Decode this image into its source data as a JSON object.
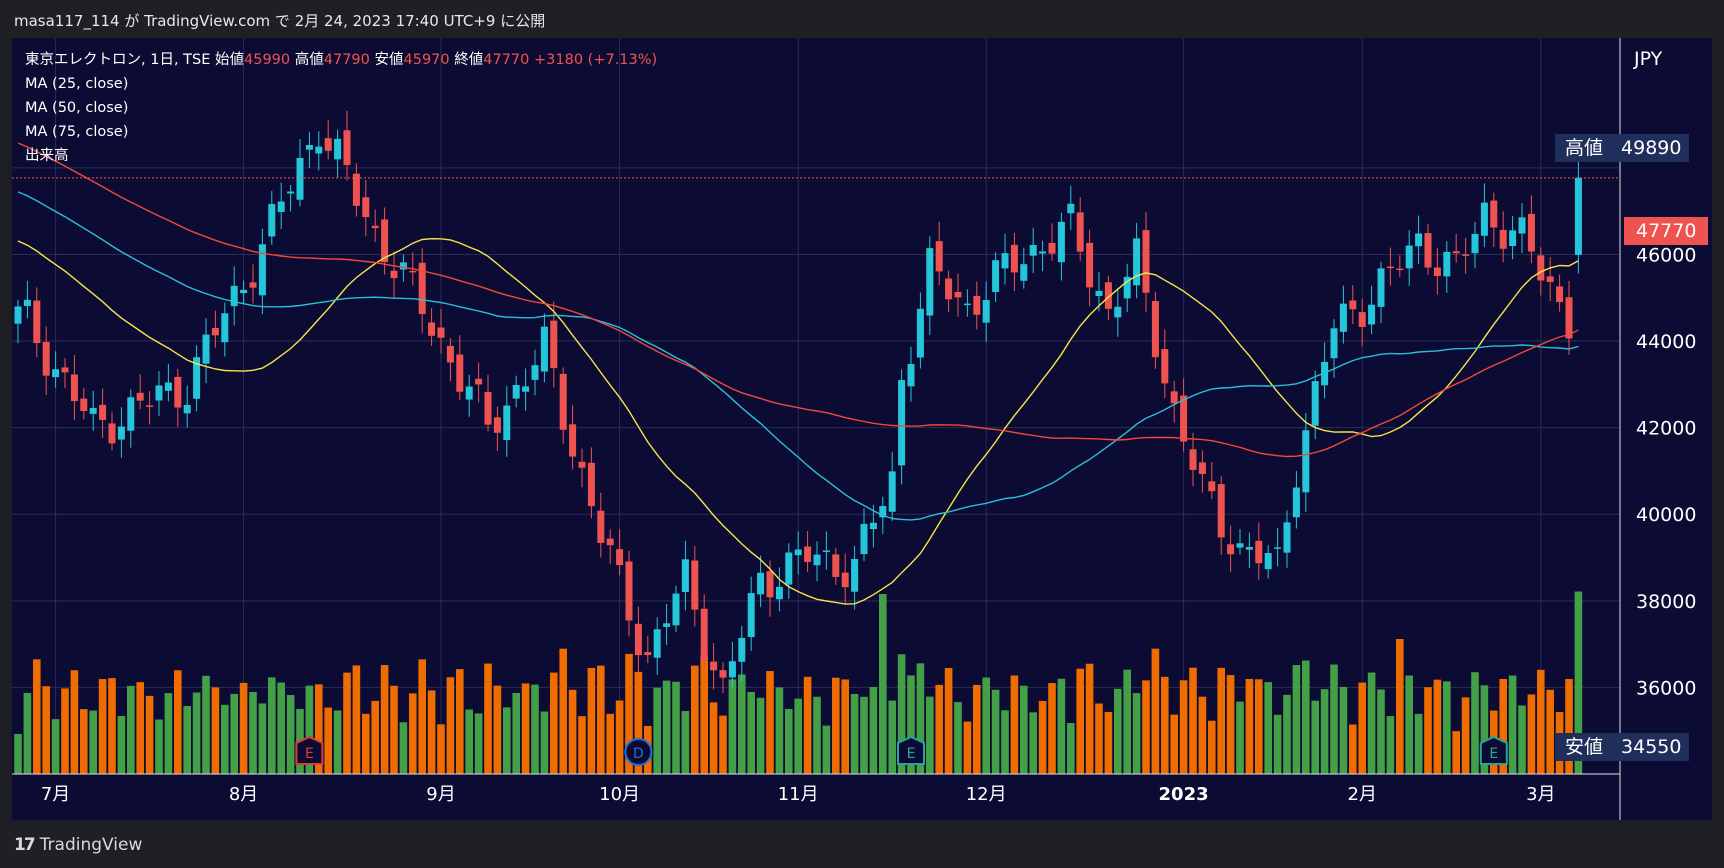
{
  "header": {
    "publish_info": "masa117_114 が TradingView.com で 2月 24, 2023 17:40 UTC+9 に公開"
  },
  "footer": {
    "brand": "TradingView",
    "logo_text": "17"
  },
  "legend": {
    "symbol": "東京エレクトロン, 1日, TSE",
    "open_label": "始値",
    "open": "45990",
    "high_label": "高値",
    "high": "47790",
    "low_label": "安値",
    "low": "45970",
    "close_label": "終値",
    "close": "47770",
    "change": "+3180 (+7.13%)",
    "ma25": "MA (25, close)",
    "ma50": "MA (50, close)",
    "ma75": "MA (75, close)",
    "volume": "出来高"
  },
  "price_axis": {
    "currency": "JPY",
    "high_tag_label": "高値",
    "high_tag_value": "49890",
    "last_value": "47770",
    "low_tag_label": "安値",
    "low_tag_value": "34550",
    "ticks": [
      "46000",
      "44000",
      "42000",
      "40000",
      "38000",
      "36000"
    ]
  },
  "colors": {
    "background": "#0c0b33",
    "up": "#26c6da",
    "down": "#ef5350",
    "ma25": "#f5e44a",
    "ma50": "#2bbfd6",
    "ma75": "#f0483a",
    "vol_up": "#43a047",
    "vol_down": "#ef6c00"
  },
  "chart_data": {
    "type": "candlestick",
    "title": "東京エレクトロン, 1日, TSE",
    "ylim": [
      34000,
      51000
    ],
    "x_labels": [
      "7月",
      "8月",
      "9月",
      "10月",
      "11月",
      "12月",
      "2023",
      "2月",
      "3月"
    ],
    "events": [
      {
        "label": "E",
        "day": 31,
        "color": "#e53935"
      },
      {
        "label": "D",
        "day": 66,
        "color": "#1e6fd9"
      },
      {
        "label": "E",
        "day": 95,
        "color": "#26a69a"
      },
      {
        "label": "E",
        "day": 157,
        "color": "#26a69a"
      }
    ],
    "key_points": [
      {
        "day": 0,
        "close": 44800
      },
      {
        "day": 8,
        "close": 42000
      },
      {
        "day": 18,
        "close": 43000
      },
      {
        "day": 26,
        "close": 46200
      },
      {
        "day": 32,
        "close": 49000
      },
      {
        "day": 38,
        "close": 46500
      },
      {
        "day": 44,
        "close": 44400
      },
      {
        "day": 50,
        "close": 42000
      },
      {
        "day": 56,
        "close": 43800
      },
      {
        "day": 62,
        "close": 39500
      },
      {
        "day": 67,
        "close": 36700
      },
      {
        "day": 71,
        "close": 38500
      },
      {
        "day": 75,
        "close": 35900
      },
      {
        "day": 79,
        "close": 38500
      },
      {
        "day": 84,
        "close": 39000
      },
      {
        "day": 89,
        "close": 38800
      },
      {
        "day": 93,
        "close": 40800
      },
      {
        "day": 94,
        "close": 43200
      },
      {
        "day": 97,
        "close": 45600
      },
      {
        "day": 101,
        "close": 44800
      },
      {
        "day": 107,
        "close": 46000
      },
      {
        "day": 112,
        "close": 46600
      },
      {
        "day": 116,
        "close": 44700
      },
      {
        "day": 119,
        "close": 45800
      },
      {
        "day": 123,
        "close": 42400
      },
      {
        "day": 126,
        "close": 40500
      },
      {
        "day": 130,
        "close": 39200
      },
      {
        "day": 134,
        "close": 38800
      },
      {
        "day": 136,
        "close": 41200
      },
      {
        "day": 140,
        "close": 44300
      },
      {
        "day": 146,
        "close": 45500
      },
      {
        "day": 149,
        "close": 46300
      },
      {
        "day": 153,
        "close": 45600
      },
      {
        "day": 156,
        "close": 47000
      },
      {
        "day": 160,
        "close": 46300
      },
      {
        "day": 163,
        "close": 45300
      },
      {
        "day": 165,
        "close": 44500
      },
      {
        "day": 166,
        "close": 47770
      }
    ]
  }
}
